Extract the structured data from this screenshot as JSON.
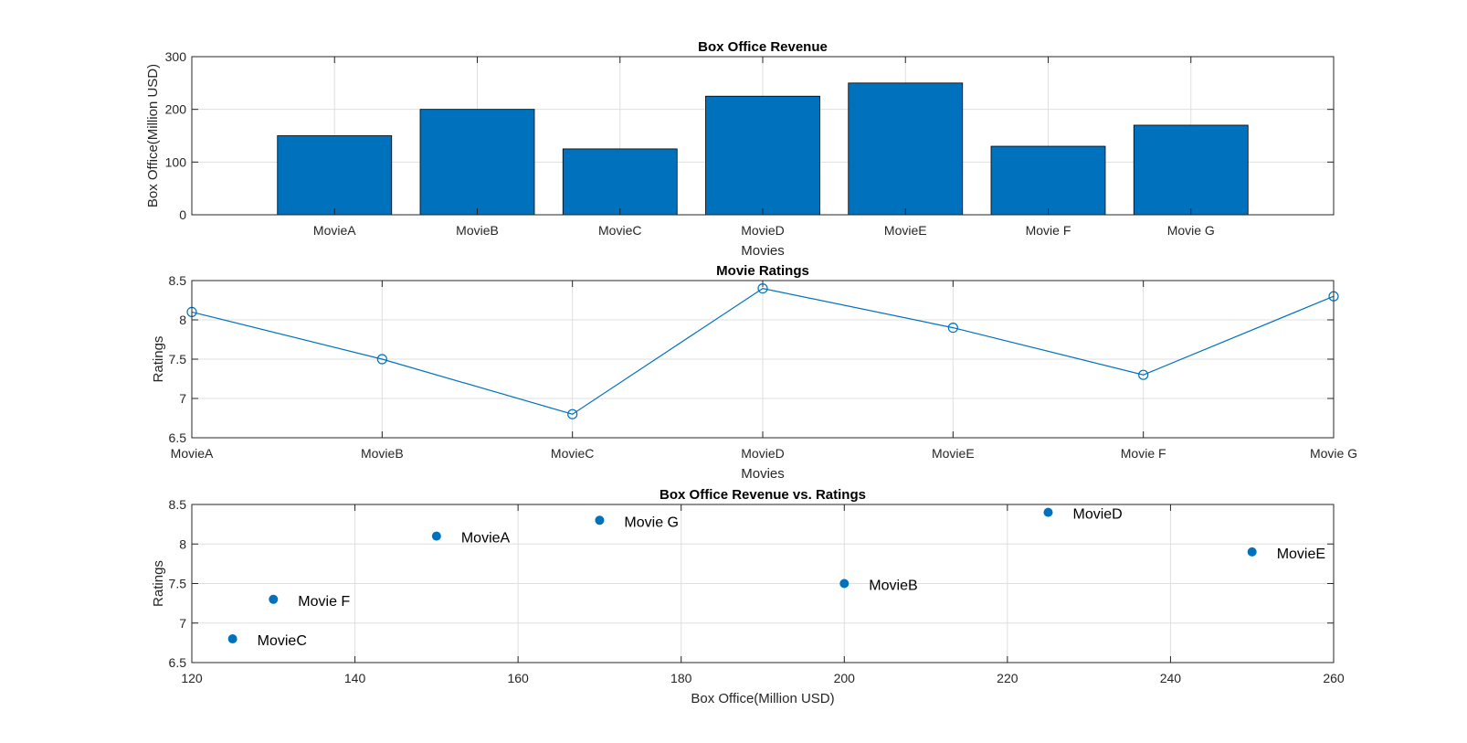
{
  "chart_data": [
    {
      "type": "bar",
      "title": "Box Office Revenue",
      "xlabel": "Movies",
      "ylabel": "Box Office(Million USD)",
      "categories": [
        "MovieA",
        "MovieB",
        "MovieC",
        "MovieD",
        "MovieE",
        "Movie F",
        "Movie G"
      ],
      "values": [
        150,
        200,
        125,
        225,
        250,
        130,
        170
      ],
      "ylim": [
        0,
        300
      ],
      "yticks": [
        "0",
        "100",
        "200",
        "300"
      ],
      "grid": true,
      "bar_color": "#0072BD"
    },
    {
      "type": "line",
      "title": "Movie Ratings",
      "xlabel": "Movies",
      "ylabel": "Ratings",
      "categories": [
        "MovieA",
        "MovieB",
        "MovieC",
        "MovieD",
        "MovieE",
        "Movie F",
        "Movie G"
      ],
      "values": [
        8.1,
        7.5,
        6.8,
        8.4,
        7.9,
        7.3,
        8.3
      ],
      "ylim": [
        6.5,
        8.5
      ],
      "yticks": [
        "6.5",
        "7",
        "7.5",
        "8",
        "8.5"
      ],
      "marker": "circle",
      "grid": true,
      "line_color": "#0072BD"
    },
    {
      "type": "scatter",
      "title": "Box Office Revenue vs. Ratings",
      "xlabel": "Box Office(Million USD)",
      "ylabel": "Ratings",
      "points": [
        {
          "label": "MovieA",
          "x": 150,
          "y": 8.1
        },
        {
          "label": "MovieB",
          "x": 200,
          "y": 7.5
        },
        {
          "label": "MovieC",
          "x": 125,
          "y": 6.8
        },
        {
          "label": "MovieD",
          "x": 225,
          "y": 8.4
        },
        {
          "label": "MovieE",
          "x": 250,
          "y": 7.9
        },
        {
          "label": "Movie F",
          "x": 130,
          "y": 7.3
        },
        {
          "label": "Movie G",
          "x": 170,
          "y": 8.3
        }
      ],
      "xlim": [
        120,
        260
      ],
      "ylim": [
        6.5,
        8.5
      ],
      "xticks": [
        "120",
        "140",
        "160",
        "180",
        "200",
        "220",
        "240",
        "260"
      ],
      "yticks": [
        "6.5",
        "7",
        "7.5",
        "8",
        "8.5"
      ],
      "grid": true,
      "marker_color": "#0072BD"
    }
  ]
}
